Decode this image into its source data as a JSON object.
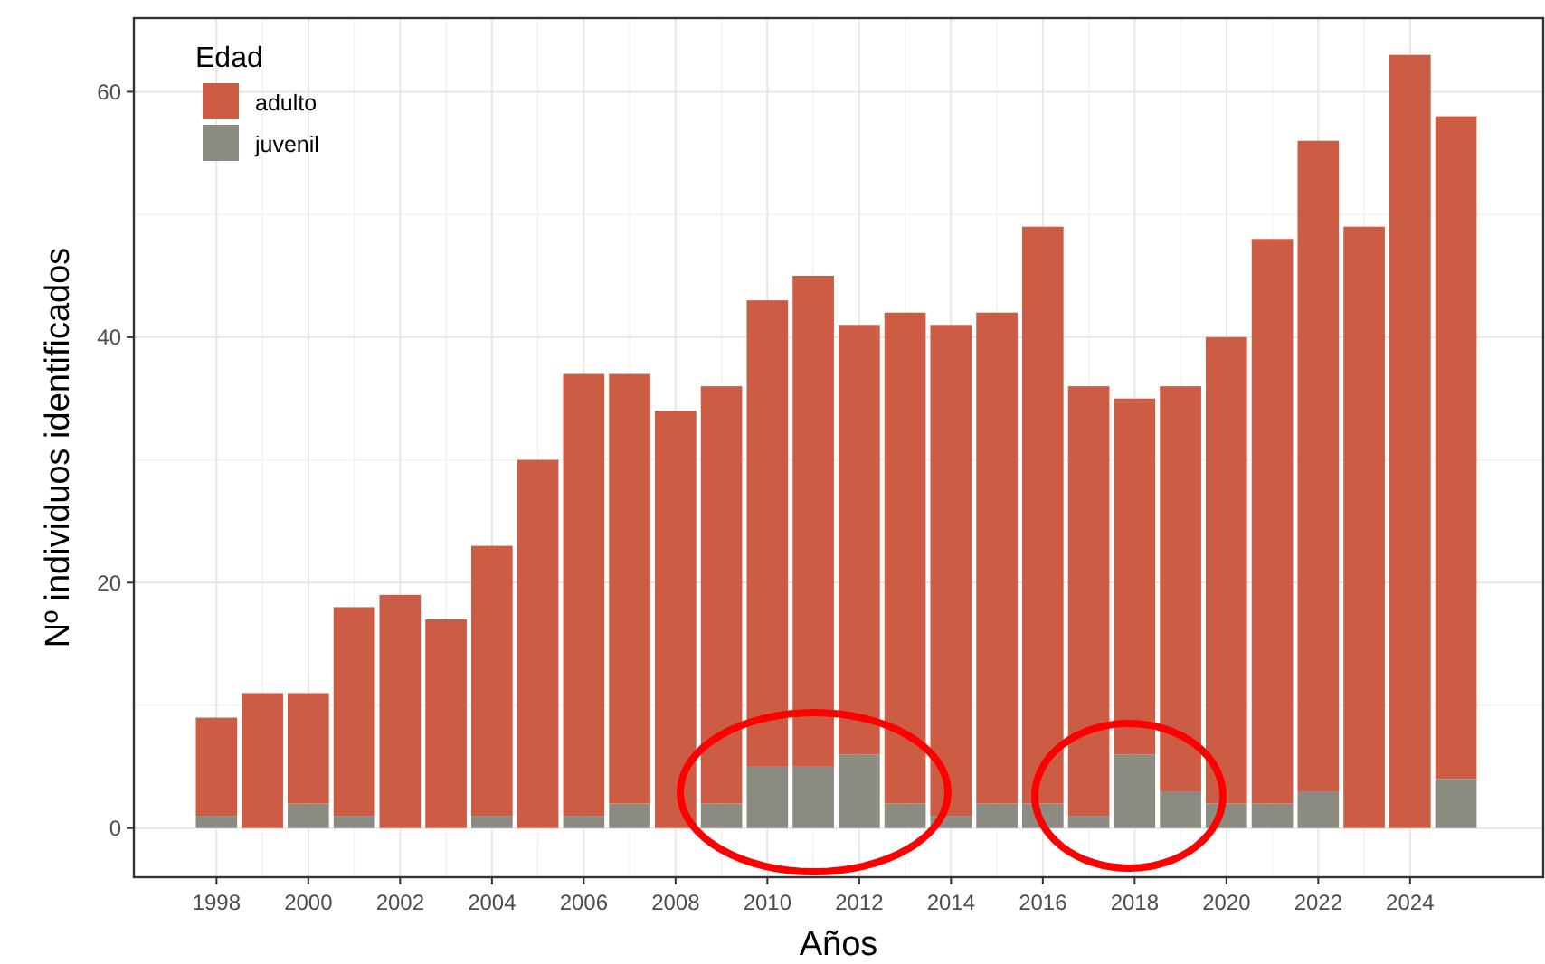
{
  "chart_data": {
    "type": "bar",
    "stacked": true,
    "xlabel": "Años",
    "ylabel": "Nº individuos identificados",
    "legend_title": "Edad",
    "legend": "top left",
    "grid": true,
    "x": [
      1998,
      1999,
      2000,
      2001,
      2002,
      2003,
      2004,
      2005,
      2006,
      2007,
      2008,
      2009,
      2010,
      2011,
      2012,
      2013,
      2014,
      2015,
      2016,
      2017,
      2018,
      2019,
      2020,
      2021,
      2022,
      2023,
      2024,
      2025
    ],
    "series": [
      {
        "name": "juvenil",
        "color": "#8c8b82",
        "values": [
          1,
          0,
          2,
          1,
          0,
          0,
          1,
          0,
          1,
          2,
          0,
          2,
          5,
          5,
          6,
          2,
          1,
          2,
          2,
          1,
          6,
          3,
          2,
          2,
          3,
          0,
          0,
          4
        ]
      },
      {
        "name": "adulto",
        "color": "#cd5c45",
        "values": [
          8,
          11,
          9,
          17,
          19,
          17,
          22,
          30,
          36,
          35,
          34,
          34,
          38,
          40,
          35,
          40,
          40,
          40,
          47,
          35,
          29,
          33,
          38,
          46,
          53,
          49,
          63,
          54
        ]
      }
    ],
    "xlim": [
      1996.2,
      2026.9
    ],
    "xticks": [
      1998,
      2000,
      2002,
      2004,
      2006,
      2008,
      2010,
      2012,
      2014,
      2016,
      2018,
      2020,
      2022,
      2024
    ],
    "ylim": [
      -4,
      66
    ],
    "yticks": [
      0,
      20,
      40,
      60
    ]
  }
}
